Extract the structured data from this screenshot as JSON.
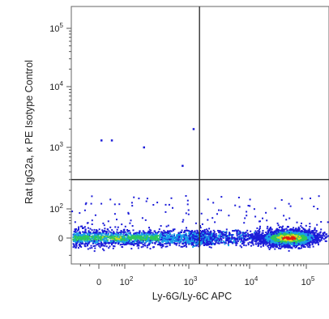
{
  "chart_data": {
    "type": "scatter",
    "subtype": "flow-cytometry-density-dot-plot",
    "title": "",
    "xlabel": "Ly-6G/Ly-6C APC",
    "ylabel": "Rat IgG2a, κ PE Isotype Control",
    "x_scale": "biexponential",
    "y_scale": "biexponential",
    "xlim": [
      -150,
      200000
    ],
    "ylim": [
      -60,
      200000
    ],
    "x_ticks": [
      {
        "value": 0,
        "label": "0",
        "sup": ""
      },
      {
        "value": 100,
        "label": "10",
        "sup": "2"
      },
      {
        "value": 1000,
        "label": "10",
        "sup": "3"
      },
      {
        "value": 10000,
        "label": "10",
        "sup": "4"
      },
      {
        "value": 100000,
        "label": "10",
        "sup": "5"
      }
    ],
    "y_ticks": [
      {
        "value": 0,
        "label": "0",
        "sup": ""
      },
      {
        "value": 100,
        "label": "10",
        "sup": "2"
      },
      {
        "value": 1000,
        "label": "10",
        "sup": "3"
      },
      {
        "value": 10000,
        "label": "10",
        "sup": "4"
      },
      {
        "value": 100000,
        "label": "10",
        "sup": "5"
      }
    ],
    "quadrant_gates": {
      "x": 1500,
      "y": 300
    },
    "populations": [
      {
        "x_range": [
          -100,
          2000
        ],
        "y_center": 0,
        "density": "medium-high"
      },
      {
        "x_range": [
          10000,
          100000
        ],
        "y_center": 0,
        "peak_x": 50000,
        "density": "high"
      }
    ],
    "sparse_events": [
      {
        "x": 50,
        "y": 1300
      },
      {
        "x": 200,
        "y": 1000
      },
      {
        "x": 1200,
        "y": 2000
      },
      {
        "x": 800,
        "y": 500
      },
      {
        "x": 10,
        "y": 1300
      }
    ],
    "grid": false,
    "legend": "none",
    "colors": {
      "low": "#1c1cd8",
      "mid_low": "#1aa0e8",
      "mid": "#2ec65a",
      "mid_high": "#d8dc20",
      "high": "#e21a10",
      "gate_line": "#333333"
    }
  }
}
